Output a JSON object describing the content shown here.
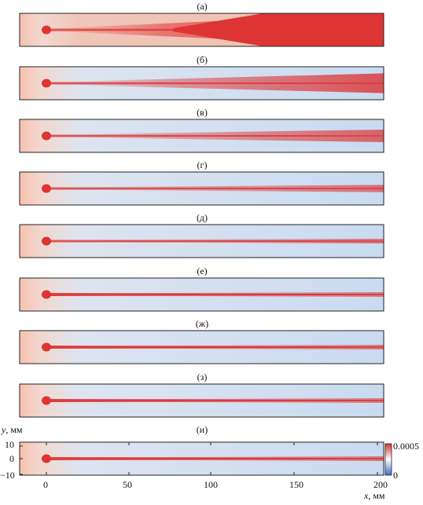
{
  "panels": [
    {
      "label": "(а)",
      "spread": 1.0,
      "field": 0.95
    },
    {
      "label": "(б)",
      "spread": 0.6,
      "field": 0.25
    },
    {
      "label": "(в)",
      "spread": 0.38,
      "field": 0.2
    },
    {
      "label": "(г)",
      "spread": 0.22,
      "field": 0.18
    },
    {
      "label": "(д)",
      "spread": 0.14,
      "field": 0.18
    },
    {
      "label": "(е)",
      "spread": 0.08,
      "field": 0.18
    },
    {
      "label": "(ж)",
      "spread": 0.06,
      "field": 0.18
    },
    {
      "label": "(з)",
      "spread": 0.06,
      "field": 0.15
    },
    {
      "label": "(и)",
      "spread": 0.1,
      "field": 0.22
    }
  ],
  "axes": {
    "x_title": "x",
    "x_unit": ", мм",
    "y_title": "y",
    "y_unit": ", мм",
    "x_ticks": [
      "0",
      "50",
      "100",
      "150",
      "200"
    ],
    "y_ticks": [
      "10",
      "0",
      "−10"
    ]
  },
  "colorbar": {
    "max_label": "0.0005",
    "min_label": "0",
    "colors": [
      "#3a6fd0",
      "#ffffff",
      "#d93030"
    ]
  }
}
